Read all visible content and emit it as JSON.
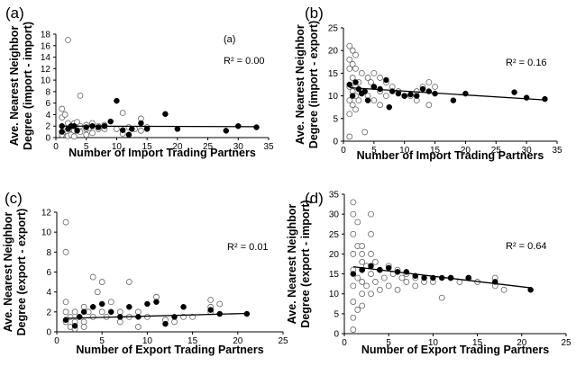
{
  "chart_data": [
    {
      "type": "scatter",
      "panel_label": "(a)",
      "xlabel": "Number of Import Trading Partners",
      "ylabel_line1": "Ave. Nearest Neighbor",
      "ylabel_line2": "Degree (import - import)",
      "xlim": [
        0,
        35
      ],
      "ylim": [
        0,
        18
      ],
      "xticks": [
        "0",
        "5",
        "10",
        "15",
        "20",
        "25",
        "30",
        "35"
      ],
      "yticks": [
        "0",
        "2",
        "4",
        "6",
        "8",
        "10",
        "12",
        "14",
        "16",
        "18"
      ],
      "inner_label": "(a)",
      "r2_text": "R² = 0.00",
      "trend": {
        "x": [
          1,
          33
        ],
        "y": [
          2.0,
          1.9
        ]
      },
      "series": [
        {
          "name": "open",
          "style": "open",
          "x": [
            1,
            1,
            1,
            1,
            1.5,
            1.5,
            2,
            2,
            2,
            2,
            2.5,
            2.5,
            3,
            3,
            3,
            3.5,
            4,
            4,
            4,
            5,
            5,
            5,
            5.5,
            6,
            6,
            7,
            7,
            8,
            8,
            10,
            11,
            11,
            12,
            13,
            14,
            14,
            15
          ],
          "y": [
            5,
            3.5,
            1,
            0.5,
            4,
            1,
            17,
            2.5,
            0.8,
            0.3,
            1.5,
            0.5,
            2.5,
            1.2,
            0.2,
            2.7,
            7.3,
            2,
            1,
            2.2,
            1.5,
            0.5,
            1.7,
            2.5,
            0.8,
            2,
            1.5,
            2.2,
            1.5,
            1.5,
            4.3,
            0.7,
            1.8,
            1.5,
            3.3,
            1.2,
            1.8
          ]
        },
        {
          "name": "filled",
          "style": "filled",
          "x": [
            1,
            1,
            2,
            2.5,
            3,
            3.5,
            5,
            6,
            7,
            8,
            9,
            10,
            11,
            12,
            12.5,
            14,
            15,
            18,
            20,
            28,
            30,
            33
          ],
          "y": [
            2,
            1,
            1.5,
            2,
            2,
            1.2,
            1.8,
            2,
            1.8,
            2,
            2.8,
            6.4,
            1.3,
            0.5,
            1.5,
            2.5,
            1.5,
            4.1,
            1.5,
            1.2,
            2,
            1.8
          ]
        }
      ]
    },
    {
      "type": "scatter",
      "panel_label": "(b)",
      "xlabel": "Number of Import Trading Partners",
      "ylabel_line1": "Ave. Nearest Neighbor",
      "ylabel_line2": "Degree (import - export)",
      "xlim": [
        0,
        35
      ],
      "ylim": [
        0,
        25
      ],
      "xticks": [
        "0",
        "5",
        "10",
        "15",
        "20",
        "25",
        "30",
        "35"
      ],
      "yticks": [
        "0",
        "5",
        "10",
        "15",
        "20",
        "25"
      ],
      "r2_text": "R² = 0.16",
      "trend": {
        "x": [
          1,
          33
        ],
        "y": [
          11.8,
          9.1
        ]
      },
      "series": [
        {
          "name": "open",
          "style": "open",
          "x": [
            1,
            1,
            1,
            1,
            1,
            1,
            1,
            1.5,
            1.5,
            1.5,
            1.5,
            1.5,
            2,
            2,
            2,
            2,
            2,
            2.5,
            2.5,
            3,
            3,
            3.5,
            4,
            4,
            4.5,
            5,
            5,
            5,
            6,
            6,
            6,
            7,
            7,
            8,
            9,
            10,
            11,
            12,
            12,
            13,
            14,
            14,
            15
          ],
          "y": [
            21,
            18,
            16,
            12,
            9,
            6,
            1,
            20,
            17,
            14,
            11,
            8,
            19,
            16,
            12,
            10,
            7,
            13,
            9,
            15,
            11,
            2,
            14,
            10,
            13,
            15,
            12,
            9,
            14,
            11,
            8,
            13,
            10,
            12,
            11,
            10,
            10,
            11,
            9,
            12,
            13,
            8,
            12
          ]
        },
        {
          "name": "filled",
          "style": "filled",
          "x": [
            1,
            1.5,
            2,
            2.5,
            3,
            3.5,
            4,
            5,
            6,
            7,
            7.5,
            8,
            9,
            10,
            11,
            12,
            13,
            14,
            15,
            18,
            20,
            28,
            30,
            33
          ],
          "y": [
            12.5,
            10,
            13,
            11.5,
            10.5,
            11,
            9,
            12,
            11.5,
            13.5,
            7.5,
            11,
            10.5,
            10,
            10.3,
            10,
            11.5,
            11,
            10.5,
            9,
            10.5,
            10.8,
            9.6,
            9.3
          ]
        }
      ]
    },
    {
      "type": "scatter",
      "panel_label": "(c)",
      "xlabel": "Number of Export Trading Partners",
      "ylabel_line1": "Ave. Nearest Neighbor",
      "ylabel_line2": "Degree (export - export)",
      "xlim": [
        0,
        25
      ],
      "ylim": [
        0,
        12
      ],
      "xticks": [
        "0",
        "5",
        "10",
        "15",
        "20",
        "25"
      ],
      "yticks": [
        "0",
        "2",
        "4",
        "6",
        "8",
        "10",
        "12"
      ],
      "r2_text": "R² = 0.01",
      "trend": {
        "x": [
          1,
          21
        ],
        "y": [
          1.35,
          1.85
        ]
      },
      "series": [
        {
          "name": "open",
          "style": "open",
          "x": [
            1,
            1,
            1,
            1,
            1,
            1.5,
            1.5,
            2,
            2,
            2,
            2.5,
            3,
            3,
            3,
            3.5,
            4,
            4,
            4.5,
            5,
            5,
            5.5,
            6,
            7,
            7,
            8,
            8,
            9,
            9,
            10,
            11,
            12,
            13,
            14,
            15,
            17,
            17,
            17,
            18
          ],
          "y": [
            11,
            8,
            3,
            2,
            1,
            1.5,
            0.5,
            2,
            1,
            0.3,
            1.5,
            2.5,
            1,
            0.5,
            2,
            5.5,
            1.5,
            4,
            5,
            2,
            1.5,
            3,
            2,
            1,
            5,
            1.5,
            2,
            0.5,
            1.5,
            3.5,
            1.2,
            1,
            1.5,
            1.5,
            3.2,
            2.5,
            2,
            2.8
          ]
        },
        {
          "name": "filled",
          "style": "filled",
          "x": [
            1,
            2,
            2.5,
            3,
            4,
            5,
            6,
            7,
            8,
            9,
            10,
            11,
            12,
            13,
            14,
            17,
            18,
            21
          ],
          "y": [
            1.2,
            0.6,
            1.5,
            2,
            2.5,
            2.8,
            2,
            1.5,
            2.5,
            1.5,
            2.8,
            3,
            0.8,
            1.5,
            2.5,
            2.2,
            1.8,
            1.8
          ]
        }
      ]
    },
    {
      "type": "scatter",
      "panel_label": "(d)",
      "xlabel": "Number of Export Trading Partners",
      "ylabel_line1": "Ave. Nearest Neighbor",
      "ylabel_line2": "Degree (export - import)",
      "xlim": [
        0,
        25
      ],
      "ylim": [
        0,
        35
      ],
      "xticks": [
        "0",
        "5",
        "10",
        "15",
        "20",
        "25"
      ],
      "yticks": [
        "0",
        "5",
        "10",
        "15",
        "20",
        "25",
        "30",
        "35"
      ],
      "r2_text": "R² = 0.64",
      "trend": {
        "x": [
          1,
          21
        ],
        "y": [
          16.8,
          11.5
        ]
      },
      "series": [
        {
          "name": "open",
          "style": "open",
          "x": [
            1,
            1,
            1,
            1,
            1,
            1,
            1,
            1,
            1,
            1.5,
            1.5,
            1.5,
            1.5,
            2,
            2,
            2,
            2,
            2,
            2,
            2,
            2.5,
            2.5,
            3,
            3,
            3,
            3,
            3,
            3.5,
            3.5,
            4,
            4,
            4.5,
            5,
            5,
            5.5,
            6,
            6,
            6.5,
            7,
            7,
            8,
            8,
            9,
            10,
            11,
            12,
            13,
            14,
            15,
            17,
            17,
            18
          ],
          "y": [
            33,
            30,
            25,
            20,
            16,
            12,
            8,
            4,
            1,
            28,
            22,
            14,
            6,
            22,
            20,
            18,
            16,
            13,
            10,
            7,
            17,
            12,
            30,
            25,
            20,
            15,
            10,
            18,
            13,
            16,
            11,
            14,
            17,
            12,
            15,
            16,
            11,
            14,
            15,
            13,
            14,
            12,
            13,
            13,
            9,
            14,
            13,
            14,
            13,
            14,
            12,
            11
          ]
        },
        {
          "name": "filled",
          "style": "filled",
          "x": [
            1,
            2,
            3,
            4,
            5,
            6,
            7,
            8,
            9,
            10,
            11,
            12,
            14,
            17,
            21
          ],
          "y": [
            15,
            16,
            17,
            16,
            16.5,
            15.5,
            15.5,
            14.5,
            14,
            14,
            14,
            14,
            14,
            13,
            11
          ]
        }
      ]
    }
  ]
}
